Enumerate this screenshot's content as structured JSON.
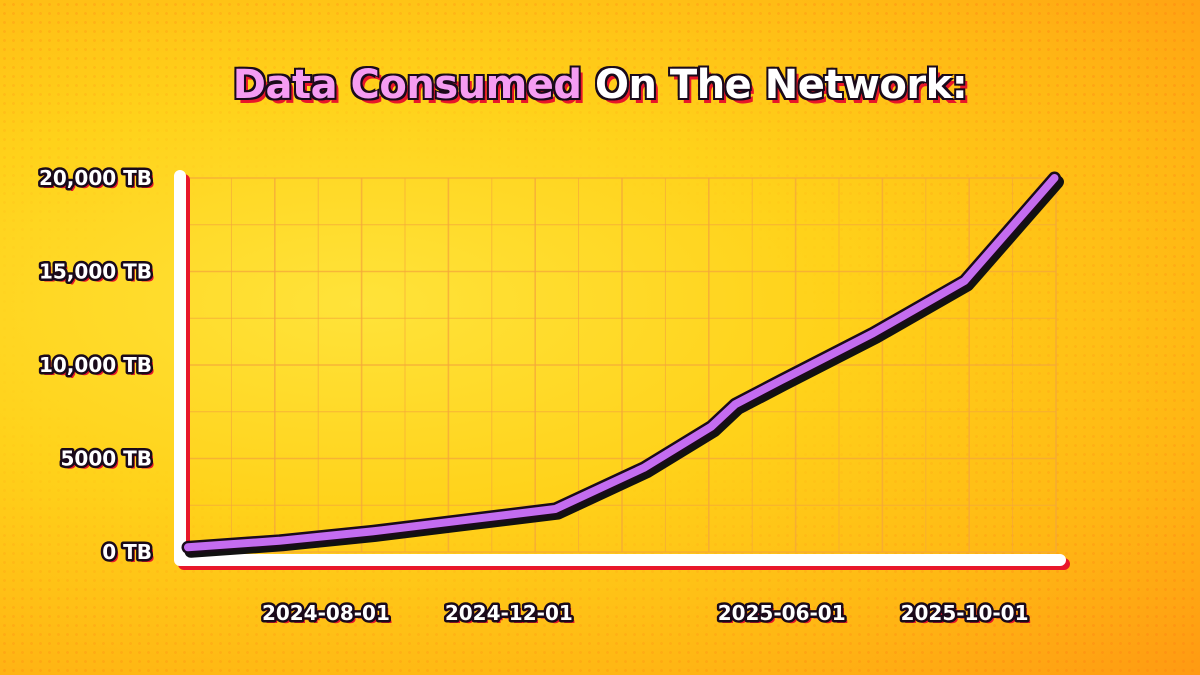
{
  "title": {
    "part1": "Data Consumed",
    "part2": "On The Network:"
  },
  "colors": {
    "line": "#c46cf0",
    "line_shadow": "#111111",
    "axis": "#ffffff",
    "axis_shadow": "#e8172a",
    "grid": "#f5a83a",
    "title_accent": "#f59cf2"
  },
  "chart_data": {
    "type": "line",
    "ylabel_unit": "TB",
    "ylim": [
      0,
      20000
    ],
    "yticks": [
      0,
      5000,
      10000,
      15000,
      20000
    ],
    "ytick_labels": [
      "0 TB",
      "5000 TB",
      "10,000 TB",
      "15,000 TB",
      "20,000 TB"
    ],
    "xlim": [
      "2024-05-01",
      "2025-12-01"
    ],
    "xticks": [
      "2024-08-01",
      "2024-12-01",
      "2025-06-01",
      "2025-10-01"
    ],
    "grid": true,
    "legend": "none",
    "series": [
      {
        "x": [
          "2024-05-01",
          "2024-07-01",
          "2024-09-01",
          "2024-11-01",
          "2025-01-01",
          "2025-03-01",
          "2025-04-15",
          "2025-05-01",
          "2025-06-01",
          "2025-08-01",
          "2025-10-01",
          "2025-11-30"
        ],
        "values": [
          250,
          600,
          1100,
          1700,
          2300,
          4500,
          6700,
          7900,
          9200,
          11700,
          14500,
          20000
        ]
      }
    ]
  }
}
